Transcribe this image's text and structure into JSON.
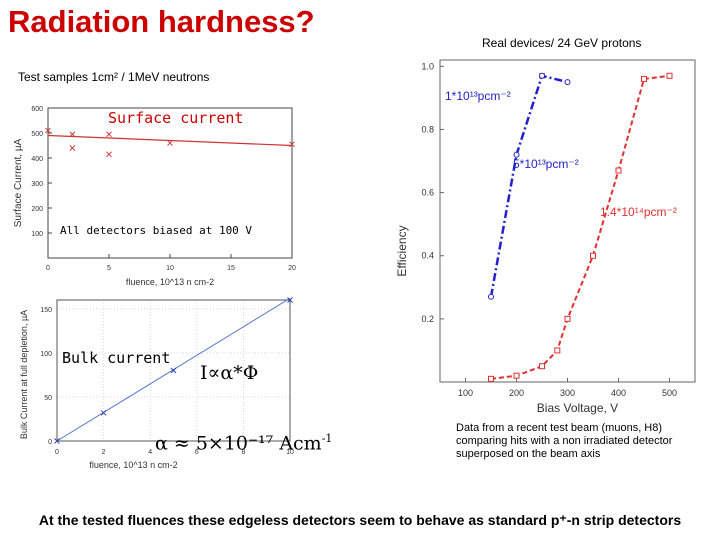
{
  "slide": {
    "title": "Radiation hardness?",
    "right_caption": "Real devices/ 24 GeV protons",
    "left_caption": "Test samples 1cm² / 1MeV neutrons",
    "surface_label": "Surface current",
    "bias_note": "All detectors biased at 100 V",
    "bulk_label": "Bulk current",
    "prop_formula": "I∝α*Φ",
    "alpha_formula": "α ≈ 5×10⁻¹⁷ Acm",
    "alpha_exp": "-1",
    "note": "Data from a recent test beam (muons, H8) comparing hits with a non irradiated detector superposed on the beam axis",
    "bottom": "At the tested fluences these edgeless detectors seem to behave as standard p⁺-n strip detectors"
  },
  "chart_data": [
    {
      "type": "scatter",
      "title": "",
      "xlabel": "fluence, 10^13 n cm-2",
      "ylabel": "Surface Current, µA",
      "xlim": [
        0,
        20
      ],
      "ylim": [
        0,
        600
      ],
      "xticks": [
        "0",
        "5",
        "10",
        "15",
        "20"
      ],
      "yticks": [
        "100",
        "200",
        "300",
        "400",
        "500",
        "600"
      ],
      "grid": false,
      "colors": {
        "points": "#d04040",
        "fit": "#cc3333"
      },
      "series": [
        {
          "values": [
            [
              0,
              510
            ],
            [
              2,
              495
            ],
            [
              2,
              440
            ],
            [
              5,
              495
            ],
            [
              5,
              415
            ],
            [
              10,
              460
            ],
            [
              20,
              455
            ]
          ]
        }
      ],
      "fit": [
        [
          0,
          490
        ],
        [
          20,
          450
        ]
      ]
    },
    {
      "type": "scatter",
      "title": "",
      "xlabel": "fluence, 10^13 n cm-2",
      "ylabel": "Bulk Current at full depletion, µA",
      "xlim": [
        0,
        10
      ],
      "ylim": [
        0,
        160
      ],
      "xticks": [
        "0",
        "2",
        "4",
        "6",
        "8",
        "10"
      ],
      "yticks": [
        "0",
        "50",
        "100",
        "150"
      ],
      "grid": true,
      "colors": {
        "points": "#3344aa",
        "fit": "#5577cc"
      },
      "series": [
        {
          "values": [
            [
              0,
              0
            ],
            [
              2,
              32
            ],
            [
              5,
              80
            ],
            [
              10,
              160
            ]
          ]
        }
      ],
      "fit": [
        [
          0,
          0
        ],
        [
          10,
          162
        ]
      ]
    },
    {
      "type": "line",
      "title": "",
      "xlabel": "Bias Voltage, V",
      "ylabel": "Efficiency",
      "xlim": [
        50,
        550
      ],
      "ylim": [
        0.0,
        1.02
      ],
      "xticks": [
        "100",
        "200",
        "300",
        "400",
        "500"
      ],
      "yticks": [
        "0.2",
        "0.4",
        "0.6",
        "0.8",
        "1.0"
      ],
      "grid": false,
      "series": [
        {
          "name": "1*10¹³pcm⁻²",
          "color": "#000000",
          "x": [
            250
          ],
          "y": [
            0.97
          ],
          "marker": "x"
        },
        {
          "name": "5*10¹³pcm⁻²",
          "color": "#2222cc",
          "x": [
            150,
            200,
            250,
            300
          ],
          "y": [
            0.27,
            0.72,
            0.97,
            0.95
          ],
          "style": "dash-dot"
        },
        {
          "name": "1.4*10¹⁴pcm⁻²",
          "color": "#e03030",
          "x": [
            150,
            200,
            250,
            280,
            300,
            350,
            400,
            450,
            500
          ],
          "y": [
            0.01,
            0.02,
            0.05,
            0.1,
            0.2,
            0.4,
            0.67,
            0.96,
            0.97
          ],
          "style": "dashed"
        }
      ],
      "labels": [
        {
          "text": "1*10¹³pcm⁻²",
          "color": "#2222cc"
        },
        {
          "text": "5*10¹³pcm⁻²",
          "color": "#2222cc"
        },
        {
          "text": "1.4*10¹⁴pcm⁻²",
          "color": "#e03030"
        }
      ]
    }
  ]
}
